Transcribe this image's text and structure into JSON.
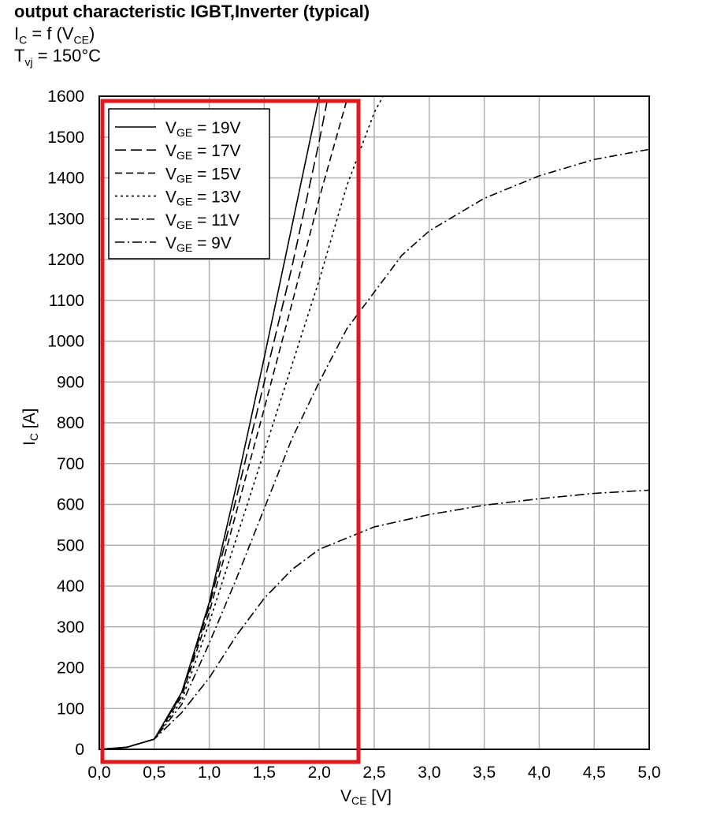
{
  "header": {
    "title": "output characteristic IGBT,Inverter (typical)",
    "line2_main": "I",
    "line2_sub": "C",
    "line2_rest": " = f (V",
    "line2_sub2": "CE",
    "line2_end": ")",
    "line3_main": "T",
    "line3_sub": "vj",
    "line3_rest": " = 150°C"
  },
  "chart_data": {
    "type": "line",
    "xlabel_main": "V",
    "xlabel_sub": "CE",
    "xlabel_unit": " [V]",
    "ylabel_main": "I",
    "ylabel_sub": "C",
    "ylabel_unit": " [A]",
    "xlim": [
      0,
      5
    ],
    "ylim": [
      0,
      1600
    ],
    "grid": true,
    "legend_position": "top-left",
    "x_ticks": [
      {
        "v": 0.0,
        "label": "0,0"
      },
      {
        "v": 0.5,
        "label": "0,5"
      },
      {
        "v": 1.0,
        "label": "1,0"
      },
      {
        "v": 1.5,
        "label": "1,5"
      },
      {
        "v": 2.0,
        "label": "2,0"
      },
      {
        "v": 2.5,
        "label": "2,5"
      },
      {
        "v": 3.0,
        "label": "3,0"
      },
      {
        "v": 3.5,
        "label": "3,5"
      },
      {
        "v": 4.0,
        "label": "4,0"
      },
      {
        "v": 4.5,
        "label": "4,5"
      },
      {
        "v": 5.0,
        "label": "5,0"
      }
    ],
    "y_ticks": [
      {
        "v": 0,
        "label": "0"
      },
      {
        "v": 100,
        "label": "100"
      },
      {
        "v": 200,
        "label": "200"
      },
      {
        "v": 300,
        "label": "300"
      },
      {
        "v": 400,
        "label": "400"
      },
      {
        "v": 500,
        "label": "500"
      },
      {
        "v": 600,
        "label": "600"
      },
      {
        "v": 700,
        "label": "700"
      },
      {
        "v": 800,
        "label": "800"
      },
      {
        "v": 900,
        "label": "900"
      },
      {
        "v": 1000,
        "label": "1000"
      },
      {
        "v": 1100,
        "label": "1100"
      },
      {
        "v": 1200,
        "label": "1200"
      },
      {
        "v": 1300,
        "label": "1300"
      },
      {
        "v": 1400,
        "label": "1400"
      },
      {
        "v": 1500,
        "label": "1500"
      },
      {
        "v": 1600,
        "label": "1600"
      }
    ],
    "series": [
      {
        "name": "19V",
        "legend_prefix": "V",
        "legend_sub": "GE",
        "legend_rest": " = 19V",
        "dash": "none",
        "x": [
          0.0,
          0.25,
          0.5,
          0.75,
          1.0,
          1.25,
          1.5,
          1.75,
          2.0
        ],
        "y": [
          0,
          5,
          25,
          140,
          360,
          650,
          960,
          1280,
          1600
        ]
      },
      {
        "name": "17V",
        "legend_prefix": "V",
        "legend_sub": "GE",
        "legend_rest": " = 17V",
        "dash": "14,6",
        "x": [
          0.0,
          0.25,
          0.5,
          0.75,
          1.0,
          1.25,
          1.5,
          1.75,
          2.0,
          2.08
        ],
        "y": [
          0,
          5,
          25,
          135,
          350,
          620,
          900,
          1180,
          1490,
          1600
        ]
      },
      {
        "name": "15V",
        "legend_prefix": "V",
        "legend_sub": "GE",
        "legend_rest": " = 15V",
        "dash": "9,5",
        "x": [
          0.0,
          0.25,
          0.5,
          0.75,
          1.0,
          1.25,
          1.5,
          1.75,
          2.0,
          2.25
        ],
        "y": [
          0,
          5,
          25,
          130,
          335,
          585,
          835,
          1090,
          1350,
          1590
        ]
      },
      {
        "name": "13V",
        "legend_prefix": "V",
        "legend_sub": "GE",
        "legend_rest": " = 13V",
        "dash": "3,4",
        "x": [
          0.0,
          0.25,
          0.5,
          0.75,
          1.0,
          1.25,
          1.5,
          1.75,
          2.0,
          2.25,
          2.5,
          2.58
        ],
        "y": [
          0,
          5,
          25,
          120,
          310,
          520,
          730,
          940,
          1150,
          1380,
          1560,
          1600
        ]
      },
      {
        "name": "11V",
        "legend_prefix": "V",
        "legend_sub": "GE",
        "legend_rest": " = 11V",
        "dash": "10,4,2,4",
        "x": [
          0.0,
          0.25,
          0.5,
          0.75,
          1.0,
          1.25,
          1.5,
          1.75,
          2.0,
          2.25,
          2.5,
          2.75,
          3.0,
          3.5,
          4.0,
          4.5,
          5.0
        ],
        "y": [
          0,
          5,
          25,
          110,
          260,
          420,
          590,
          760,
          900,
          1030,
          1120,
          1210,
          1270,
          1350,
          1405,
          1445,
          1470
        ]
      },
      {
        "name": "9V",
        "legend_prefix": "V",
        "legend_sub": "GE",
        "legend_rest": " = 9V",
        "dash": "12,4,2,4",
        "x": [
          0.0,
          0.25,
          0.5,
          0.75,
          1.0,
          1.25,
          1.5,
          1.75,
          2.0,
          2.5,
          3.0,
          3.5,
          4.0,
          4.5,
          5.0
        ],
        "y": [
          0,
          5,
          25,
          90,
          175,
          280,
          370,
          440,
          490,
          545,
          575,
          598,
          614,
          627,
          635
        ]
      }
    ]
  },
  "colors": {
    "grid": "#b0b0b0",
    "axis": "#000000",
    "curve": "#000000",
    "highlight_box": "#e0191f"
  }
}
